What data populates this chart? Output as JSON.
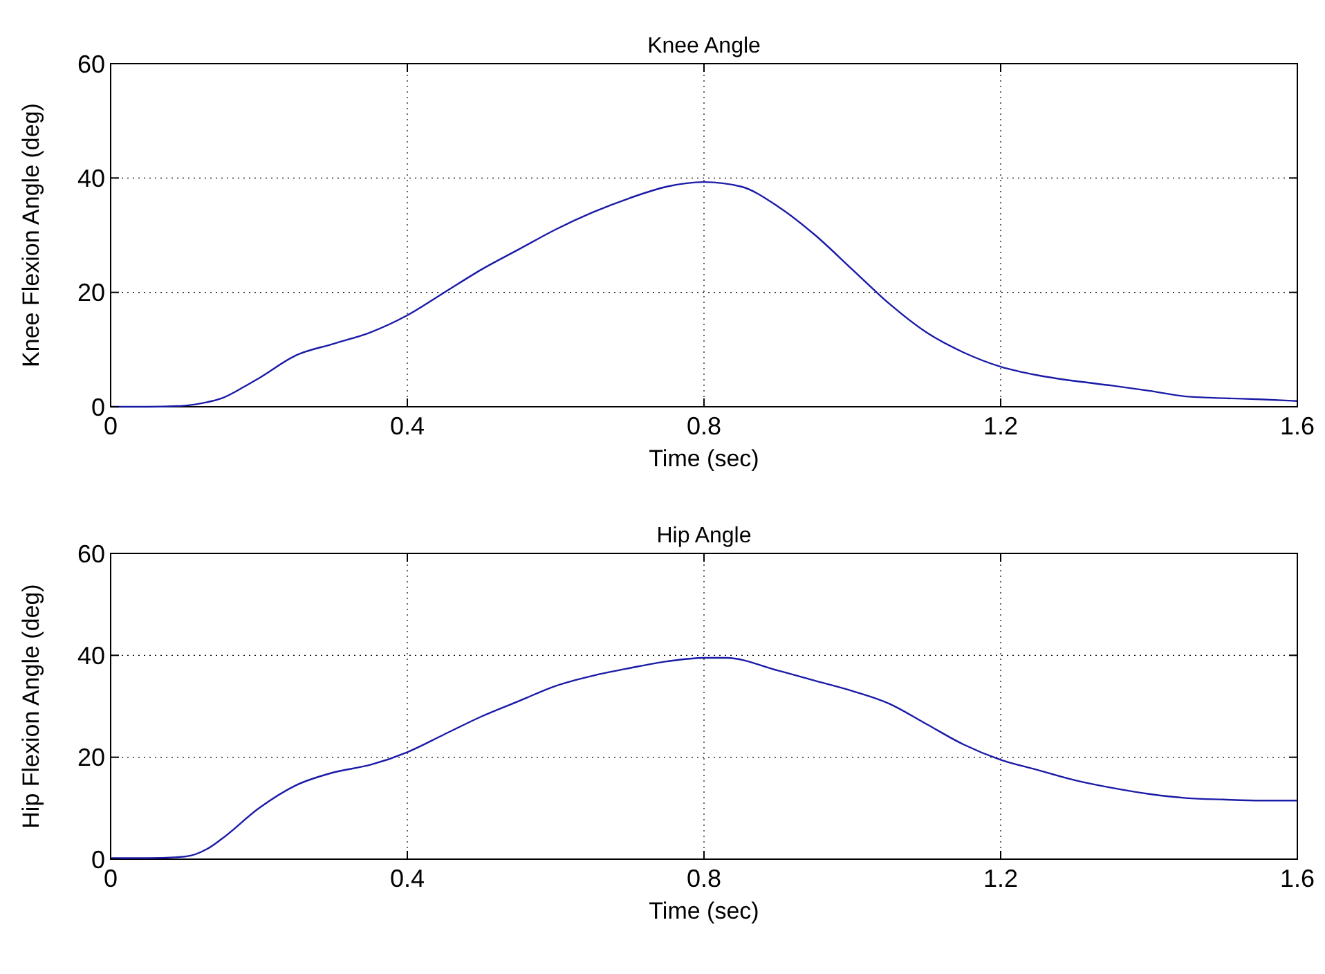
{
  "chart_data": [
    {
      "type": "line",
      "title": "Knee Angle",
      "xlabel": "Time (sec)",
      "ylabel": "Knee Flexion Angle (deg)",
      "xlim": [
        0,
        1.6
      ],
      "xticks": [
        0,
        0.4,
        0.8,
        1.2,
        1.6
      ],
      "ylim": [
        0,
        60
      ],
      "yticks": [
        0,
        20,
        40,
        60
      ],
      "grid": true,
      "series": [
        {
          "color": "#1a1aa8",
          "x": [
            0,
            0.05,
            0.1,
            0.13,
            0.15,
            0.18,
            0.2,
            0.25,
            0.3,
            0.35,
            0.4,
            0.45,
            0.5,
            0.55,
            0.6,
            0.65,
            0.7,
            0.75,
            0.8,
            0.85,
            0.9,
            0.95,
            1.0,
            1.05,
            1.1,
            1.15,
            1.2,
            1.25,
            1.3,
            1.35,
            1.4,
            1.45,
            1.5,
            1.55,
            1.6
          ],
          "values": [
            0,
            0,
            0.2,
            0.8,
            1.5,
            3.5,
            5,
            9,
            11,
            13,
            16,
            20,
            24,
            27.5,
            31,
            34,
            36.5,
            38.5,
            39.3,
            38.5,
            35,
            30,
            24,
            18,
            13,
            9.5,
            7,
            5.5,
            4.5,
            3.7,
            2.8,
            1.8,
            1.5,
            1.3,
            1
          ]
        }
      ]
    },
    {
      "type": "line",
      "title": "Hip Angle",
      "xlabel": "Time (sec)",
      "ylabel": "Hip Flexion Angle (deg)",
      "xlim": [
        0,
        1.6
      ],
      "xticks": [
        0,
        0.4,
        0.8,
        1.2,
        1.6
      ],
      "ylim": [
        0,
        60
      ],
      "yticks": [
        0,
        20,
        40,
        60
      ],
      "grid": true,
      "series": [
        {
          "color": "#1a1aa8",
          "x": [
            0,
            0.05,
            0.1,
            0.13,
            0.15,
            0.2,
            0.25,
            0.3,
            0.35,
            0.4,
            0.45,
            0.5,
            0.55,
            0.6,
            0.65,
            0.7,
            0.75,
            0.8,
            0.83,
            0.9,
            0.95,
            1.0,
            1.05,
            1.1,
            1.15,
            1.2,
            1.25,
            1.3,
            1.35,
            1.4,
            1.45,
            1.5,
            1.55,
            1.6
          ],
          "values": [
            0.2,
            0.2,
            0.5,
            2,
            4,
            10,
            14.5,
            17,
            18.5,
            21,
            24.5,
            28,
            31,
            34,
            36,
            37.5,
            38.8,
            39.5,
            39.5,
            37,
            35,
            33,
            30.5,
            26.5,
            22.5,
            19.5,
            17.5,
            15.5,
            14,
            12.8,
            12,
            11.7,
            11.5,
            11.5
          ]
        }
      ]
    }
  ]
}
